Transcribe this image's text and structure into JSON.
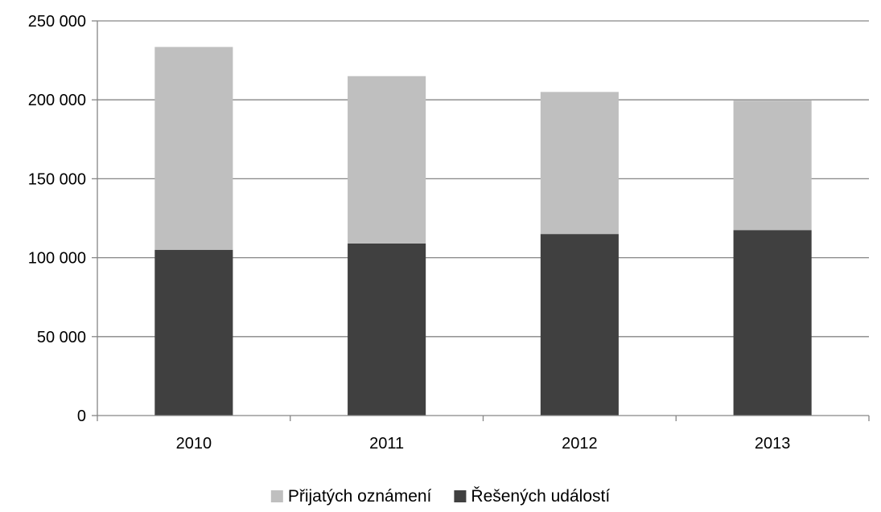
{
  "chart_data": {
    "type": "bar",
    "stacked": true,
    "categories": [
      "2010",
      "2011",
      "2012",
      "2013"
    ],
    "series": [
      {
        "name": "Řešených událostí",
        "values": [
          105000,
          109000,
          115000,
          117500
        ],
        "color": "#404040"
      },
      {
        "name": "Přijatých oznámení",
        "values": [
          128500,
          106000,
          90000,
          82000
        ],
        "color": "#bfbfbf"
      }
    ],
    "ylim": [
      0,
      250000
    ],
    "yticks": [
      0,
      50000,
      100000,
      150000,
      200000,
      250000
    ],
    "ytick_labels": [
      "0",
      "50 000",
      "100 000",
      "150 000",
      "200 000",
      "250 000"
    ],
    "grid": true,
    "legend": {
      "position": "bottom",
      "order": [
        "Přijatých oznámení",
        "Řešených událostí"
      ]
    },
    "colors": {
      "gridline": "#868686",
      "axis": "#868686"
    }
  }
}
